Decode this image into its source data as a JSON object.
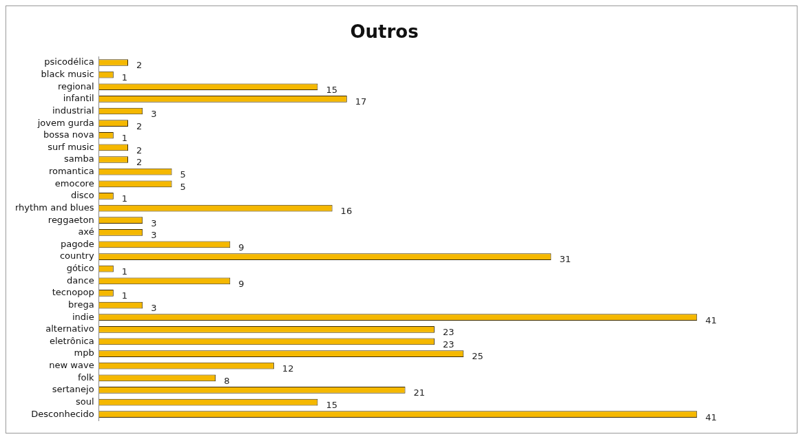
{
  "chart_data": {
    "type": "bar",
    "orientation": "horizontal",
    "title": "Outros",
    "categories": [
      "psicodélica",
      "black music",
      "regional",
      "infantil",
      "industrial",
      "jovem gurda",
      "bossa nova",
      "surf music",
      "samba",
      "romantica",
      "emocore",
      "disco",
      "rhythm and blues",
      "reggaeton",
      "axé",
      "pagode",
      "country",
      "gótico",
      "dance",
      "tecnopop",
      "brega",
      "indie",
      "alternativo",
      "eletrônica",
      "mpb",
      "new wave",
      "folk",
      "sertanejo",
      "soul",
      "Desconhecido"
    ],
    "values": [
      2,
      1,
      15,
      17,
      3,
      2,
      1,
      2,
      2,
      5,
      5,
      1,
      16,
      3,
      3,
      9,
      31,
      1,
      9,
      1,
      3,
      41,
      23,
      23,
      25,
      12,
      8,
      21,
      15,
      41
    ],
    "color": "#f5b800",
    "data_labels": true,
    "grid": false,
    "legend": false,
    "tick_labels": "y",
    "relative": false
  }
}
